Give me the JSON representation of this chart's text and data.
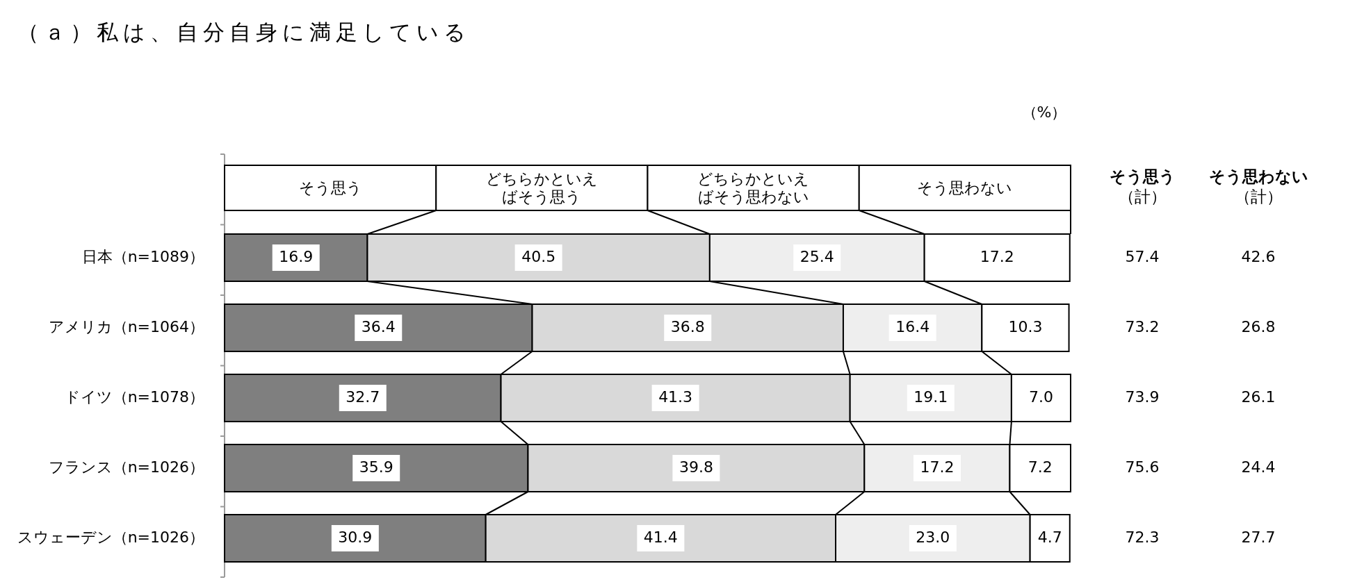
{
  "chart_data": {
    "type": "bar",
    "orientation": "horizontal",
    "stacked": true,
    "legend": "top",
    "title": "（ａ）私は、自分自身に満足している",
    "categories": [
      "日本（n=1089）",
      "アメリカ（n=1064）",
      "ドイツ（n=1078）",
      "フランス（n=1026）",
      "スウェーデン（n=1026）"
    ],
    "series": [
      {
        "name": "そう思う",
        "color": "#7f7f7f",
        "values": [
          16.9,
          36.4,
          32.7,
          35.9,
          30.9
        ],
        "value_labels": [
          "16.9",
          "36.4",
          "32.7",
          "35.9",
          "30.9"
        ]
      },
      {
        "name": "どちらかといえばそう思う",
        "color": "#d9d9d9",
        "values": [
          40.5,
          36.8,
          41.3,
          39.8,
          41.4
        ],
        "value_labels": [
          "40.5",
          "36.8",
          "41.3",
          "39.8",
          "41.4"
        ]
      },
      {
        "name": "どちらかといえばそう思わない",
        "color": "#eeeeee",
        "values": [
          25.4,
          16.4,
          19.1,
          17.2,
          23.0
        ],
        "value_labels": [
          "25.4",
          "16.4",
          "19.1",
          "17.2",
          "23.0"
        ]
      },
      {
        "name": "そう思わない",
        "color": "#ffffff",
        "values": [
          17.2,
          10.3,
          7.0,
          7.2,
          4.7
        ],
        "value_labels": [
          "17.2",
          "10.3",
          "7.0",
          "7.2",
          "4.7"
        ]
      }
    ],
    "annotations": [
      "（%）",
      "そう思う",
      "（計）",
      "そう思わない",
      "（計）",
      "57.4",
      "42.6",
      "73.2",
      "26.8",
      "73.9",
      "26.1",
      "75.6",
      "24.4",
      "72.3",
      "27.7"
    ]
  }
}
